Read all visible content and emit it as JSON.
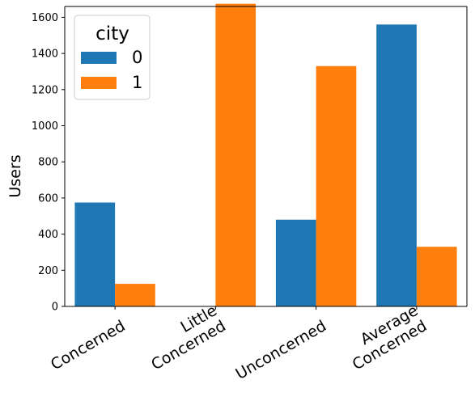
{
  "chart_data": {
    "type": "bar",
    "categories": [
      [
        "Concerned"
      ],
      [
        "Little",
        "Concerned"
      ],
      [
        "Unconcerned"
      ],
      [
        "Average",
        "Concerned"
      ]
    ],
    "series": [
      {
        "name": "0",
        "color": "#1f77b4",
        "values": [
          575,
          0,
          480,
          1560
        ]
      },
      {
        "name": "1",
        "color": "#ff7f0e",
        "values": [
          125,
          1675,
          1330,
          330
        ]
      }
    ],
    "xlabel": "",
    "ylabel": "Users",
    "ylim": [
      0,
      1660
    ],
    "yticks": [
      0,
      200,
      400,
      600,
      800,
      1000,
      1200,
      1400,
      1600
    ],
    "legend": {
      "title": "city",
      "placement": "top-left"
    },
    "grid": false
  }
}
